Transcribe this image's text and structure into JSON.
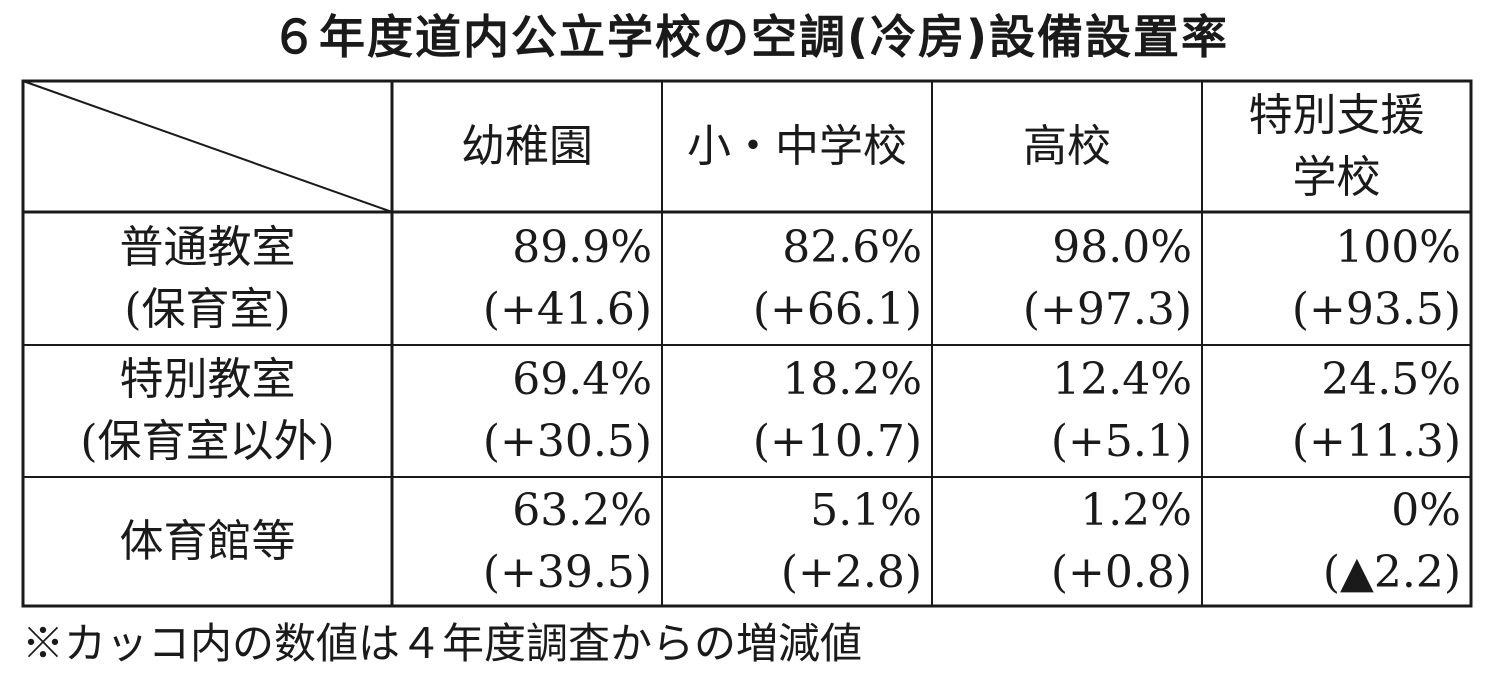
{
  "title": "６年度道内公立学校の空調(冷房)設備設置率",
  "table": {
    "columns": [
      [
        "幼稚園"
      ],
      [
        "小・中学校"
      ],
      [
        "高校"
      ],
      [
        "特別支援",
        "学校"
      ]
    ],
    "rows": [
      {
        "label": [
          "普通教室",
          "(保育室)"
        ],
        "cells": [
          [
            "89.9%",
            "(+41.6)"
          ],
          [
            "82.6%",
            "(+66.1)"
          ],
          [
            "98.0%",
            "(+97.3)"
          ],
          [
            "100%",
            "(+93.5)"
          ]
        ]
      },
      {
        "label": [
          "特別教室",
          "(保育室以外)"
        ],
        "cells": [
          [
            "69.4%",
            "(+30.5)"
          ],
          [
            "18.2%",
            "(+10.7)"
          ],
          [
            "12.4%",
            "(+5.1)"
          ],
          [
            "24.5%",
            "(+11.3)"
          ]
        ]
      },
      {
        "label": [
          "体育館等"
        ],
        "cells": [
          [
            "63.2%",
            "(+39.5)"
          ],
          [
            "5.1%",
            "(+2.8)"
          ],
          [
            "1.2%",
            "(+0.8)"
          ],
          [
            "0%",
            "(▲2.2)"
          ]
        ]
      }
    ]
  },
  "footnote": "※カッコ内の数値は４年度調査からの増減値"
}
